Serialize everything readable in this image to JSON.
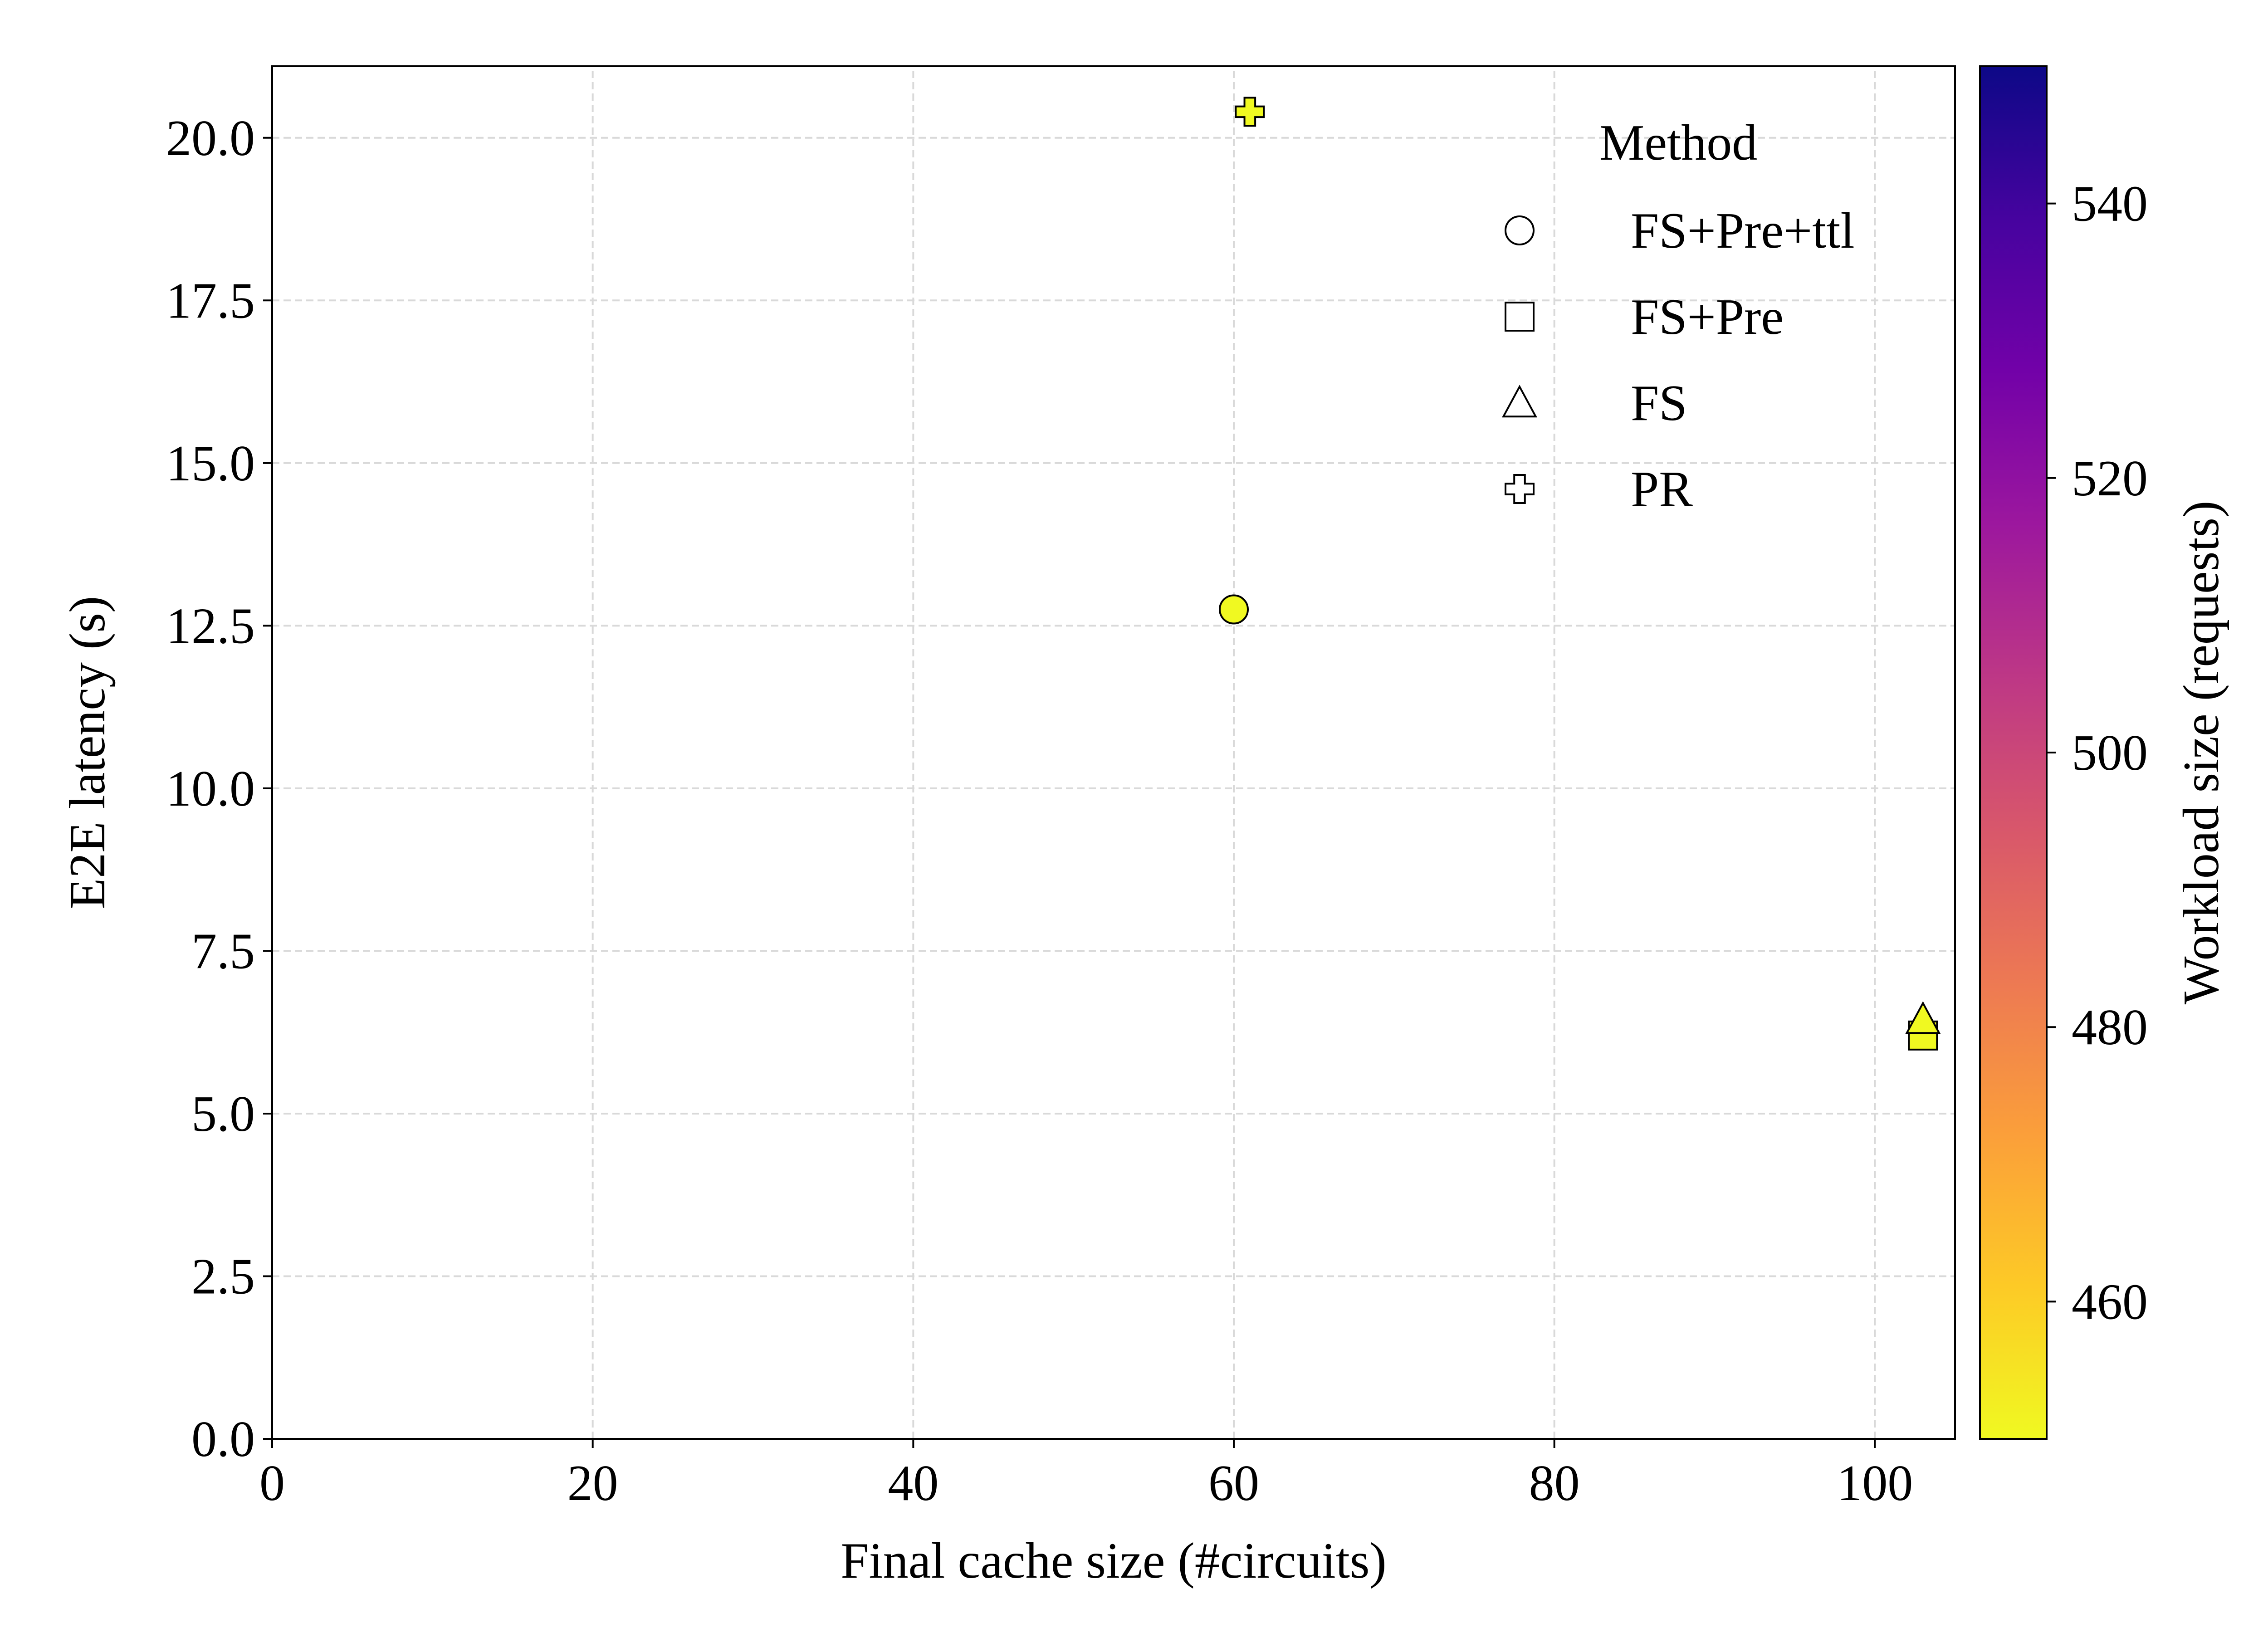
{
  "chart_data": {
    "type": "scatter",
    "xlabel": "Final cache size (#circuits)",
    "ylabel": "E2E latency (s)",
    "xlim": [
      0,
      105
    ],
    "ylim": [
      0,
      21.1
    ],
    "xticks": [
      0,
      20,
      40,
      60,
      80,
      100
    ],
    "yticks": [
      0.0,
      2.5,
      5.0,
      7.5,
      10.0,
      12.5,
      15.0,
      17.5,
      20.0
    ],
    "xtick_labels": [
      "0",
      "20",
      "40",
      "60",
      "80",
      "100"
    ],
    "ytick_labels": [
      "0.0",
      "2.5",
      "5.0",
      "7.5",
      "10.0",
      "12.5",
      "15.0",
      "17.5",
      "20.0"
    ],
    "grid": true,
    "legend": {
      "title": "Method",
      "placement": "top-right",
      "entries": [
        {
          "label": "FS+Pre+ttl",
          "marker": "circle"
        },
        {
          "label": "FS+Pre",
          "marker": "square"
        },
        {
          "label": "FS",
          "marker": "triangle"
        },
        {
          "label": "PR",
          "marker": "plus"
        }
      ]
    },
    "series": [
      {
        "name": "FS+Pre+ttl",
        "marker": "circle",
        "points": [
          {
            "x": 60,
            "y": 12.75,
            "workload": 450
          }
        ]
      },
      {
        "name": "FS+Pre",
        "marker": "square",
        "points": [
          {
            "x": 103,
            "y": 6.2,
            "workload": 450
          }
        ]
      },
      {
        "name": "FS",
        "marker": "triangle",
        "points": [
          {
            "x": 103,
            "y": 6.45,
            "workload": 450
          }
        ]
      },
      {
        "name": "PR",
        "marker": "plus",
        "points": [
          {
            "x": 61,
            "y": 20.4,
            "workload": 450
          }
        ]
      }
    ],
    "colorbar": {
      "label": "Workload size (requests)",
      "colormap": "plasma_r",
      "range": [
        450,
        550
      ],
      "ticks": [
        460,
        480,
        500,
        520,
        540
      ],
      "tick_labels": [
        "460",
        "480",
        "500",
        "520",
        "540"
      ]
    }
  }
}
